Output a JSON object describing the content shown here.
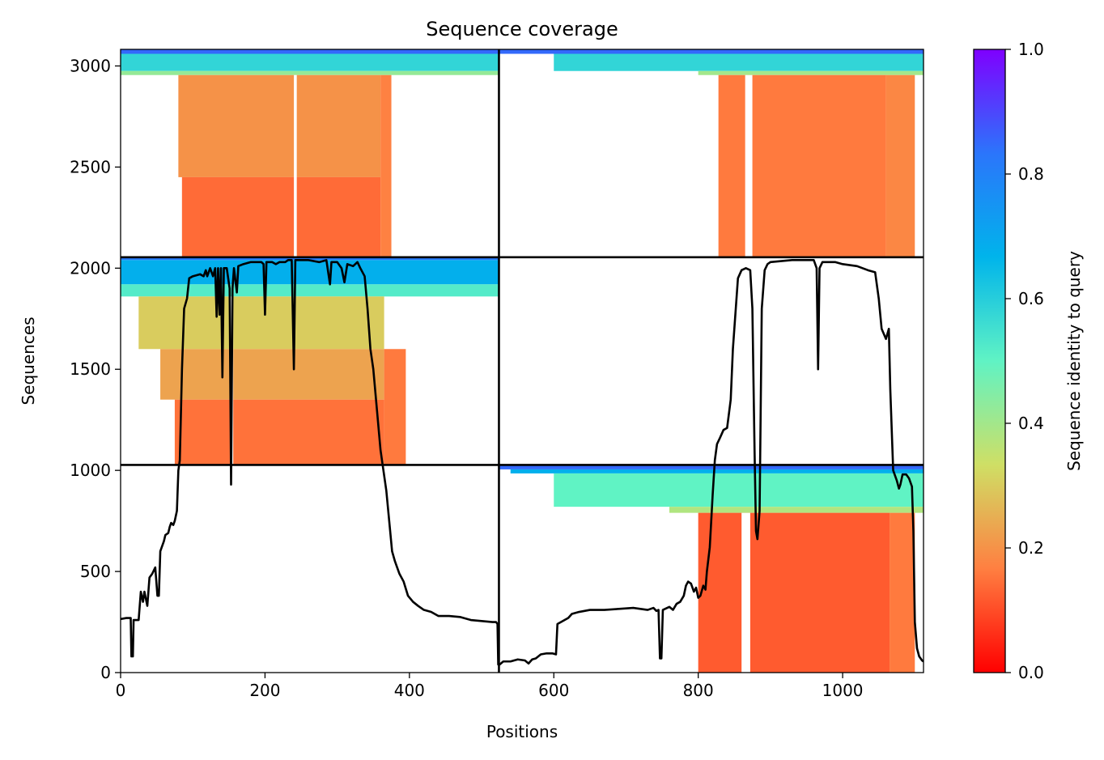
{
  "chart_data": {
    "type": "heatmap",
    "title": "Sequence coverage",
    "xlabel": "Positions",
    "ylabel": "Sequences",
    "xlim": [
      0,
      1112
    ],
    "ylim": [
      0,
      3082
    ],
    "x_ticks": [
      0,
      200,
      400,
      600,
      800,
      1000
    ],
    "y_ticks": [
      0,
      500,
      1000,
      1500,
      2000,
      2500,
      3000
    ],
    "colorbar": {
      "label": "Sequence identity to query",
      "range": [
        0.0,
        1.0
      ],
      "ticks": [
        0.0,
        0.2,
        0.4,
        0.6,
        0.8,
        1.0
      ],
      "colormap": "rainbow_r",
      "stops": [
        "#ff0000",
        "#ff7f41",
        "#cfdf65",
        "#60f3c4",
        "#00b4eb",
        "#2b75fb",
        "#7f00ff"
      ]
    },
    "separators": {
      "vertical_x": [
        524
      ],
      "horizontal_y": [
        1027,
        2054
      ]
    },
    "blocks": [
      {
        "name": "region-lower-left",
        "x_range": [
          0,
          524
        ],
        "y_range": [
          0,
          1027
        ],
        "layers": []
      },
      {
        "name": "region-lower-right",
        "x_range": [
          524,
          1112
        ],
        "y_range": [
          0,
          1027
        ],
        "layers": [
          {
            "y": [
              1005,
              1027
            ],
            "x": [
              524,
              1112
            ],
            "identity": 0.85
          },
          {
            "y": [
              985,
              1005
            ],
            "x": [
              540,
              1112
            ],
            "identity": 0.68
          },
          {
            "y": [
              820,
              985
            ],
            "x": [
              600,
              1112
            ],
            "identity": 0.5
          },
          {
            "y": [
              790,
              820
            ],
            "x": [
              760,
              1112
            ],
            "identity": 0.38
          },
          {
            "y": [
              0,
              790
            ],
            "x": [
              800,
              1065
            ],
            "identity": 0.12
          },
          {
            "y": [
              0,
              790
            ],
            "x": [
              1065,
              1100
            ],
            "identity": 0.16
          }
        ]
      },
      {
        "name": "region-middle-left",
        "x_range": [
          0,
          524
        ],
        "y_range": [
          1027,
          2054
        ],
        "layers": [
          {
            "y": [
              2040,
              2054
            ],
            "x": [
              0,
              524
            ],
            "identity": 0.82
          },
          {
            "y": [
              1920,
              2040
            ],
            "x": [
              0,
              524
            ],
            "identity": 0.68
          },
          {
            "y": [
              1860,
              1920
            ],
            "x": [
              0,
              524
            ],
            "identity": 0.52
          },
          {
            "y": [
              1600,
              1860
            ],
            "x": [
              25,
              365
            ],
            "identity": 0.3
          },
          {
            "y": [
              1350,
              1600
            ],
            "x": [
              55,
              365
            ],
            "identity": 0.23
          },
          {
            "y": [
              1027,
              1350
            ],
            "x": [
              75,
              365
            ],
            "identity": 0.15
          },
          {
            "y": [
              1027,
              1600
            ],
            "x": [
              365,
              395
            ],
            "identity": 0.16
          }
        ]
      },
      {
        "name": "region-middle-right",
        "x_range": [
          524,
          1112
        ],
        "y_range": [
          1027,
          2054
        ],
        "layers": []
      },
      {
        "name": "region-upper-left",
        "x_range": [
          0,
          524
        ],
        "y_range": [
          2054,
          3082
        ],
        "layers": [
          {
            "y": [
              3060,
              3082
            ],
            "x": [
              0,
              524
            ],
            "identity": 0.85
          },
          {
            "y": [
              2975,
              3060
            ],
            "x": [
              0,
              524
            ],
            "identity": 0.58
          },
          {
            "y": [
              2955,
              2975
            ],
            "x": [
              0,
              524
            ],
            "identity": 0.42
          },
          {
            "y": [
              2450,
              2955
            ],
            "x": [
              80,
              360
            ],
            "identity": 0.2
          },
          {
            "y": [
              2054,
              2450
            ],
            "x": [
              85,
              360
            ],
            "identity": 0.14
          },
          {
            "y": [
              2054,
              2955
            ],
            "x": [
              360,
              375
            ],
            "identity": 0.17
          }
        ]
      },
      {
        "name": "region-upper-right",
        "x_range": [
          524,
          1112
        ],
        "y_range": [
          2054,
          3082
        ],
        "layers": [
          {
            "y": [
              3060,
              3082
            ],
            "x": [
              524,
              1112
            ],
            "identity": 0.85
          },
          {
            "y": [
              2975,
              3060
            ],
            "x": [
              600,
              1112
            ],
            "identity": 0.58
          },
          {
            "y": [
              2955,
              2975
            ],
            "x": [
              800,
              1112
            ],
            "identity": 0.4
          },
          {
            "y": [
              2054,
              2955
            ],
            "x": [
              828,
              1060
            ],
            "identity": 0.16
          },
          {
            "y": [
              2054,
              2955
            ],
            "x": [
              1060,
              1100
            ],
            "identity": 0.18
          }
        ]
      }
    ],
    "gaps": [
      {
        "x": [
          860,
          872
        ],
        "y": [
          0,
          790
        ]
      },
      {
        "x": [
          865,
          875
        ],
        "y": [
          2054,
          2955
        ]
      },
      {
        "x": [
          152,
          156
        ],
        "y": [
          1027,
          1860
        ]
      },
      {
        "x": [
          240,
          244
        ],
        "y": [
          2054,
          2955
        ]
      }
    ],
    "coverage_line": [
      [
        0,
        265
      ],
      [
        8,
        270
      ],
      [
        14,
        270
      ],
      [
        15,
        80
      ],
      [
        17,
        80
      ],
      [
        18,
        260
      ],
      [
        25,
        260
      ],
      [
        28,
        400
      ],
      [
        31,
        350
      ],
      [
        33,
        400
      ],
      [
        37,
        330
      ],
      [
        40,
        470
      ],
      [
        44,
        490
      ],
      [
        48,
        520
      ],
      [
        51,
        380
      ],
      [
        53,
        380
      ],
      [
        55,
        600
      ],
      [
        58,
        630
      ],
      [
        60,
        650
      ],
      [
        62,
        680
      ],
      [
        66,
        690
      ],
      [
        68,
        720
      ],
      [
        70,
        740
      ],
      [
        73,
        730
      ],
      [
        75,
        750
      ],
      [
        78,
        800
      ],
      [
        80,
        1000
      ],
      [
        82,
        1050
      ],
      [
        85,
        1500
      ],
      [
        88,
        1800
      ],
      [
        92,
        1850
      ],
      [
        95,
        1950
      ],
      [
        100,
        1960
      ],
      [
        110,
        1970
      ],
      [
        115,
        1960
      ],
      [
        118,
        1990
      ],
      [
        120,
        1960
      ],
      [
        124,
        2000
      ],
      [
        128,
        1960
      ],
      [
        131,
        2000
      ],
      [
        133,
        1760
      ],
      [
        135,
        2000
      ],
      [
        137,
        1770
      ],
      [
        139,
        2000
      ],
      [
        141,
        1460
      ],
      [
        143,
        2000
      ],
      [
        147,
        2000
      ],
      [
        151,
        1900
      ],
      [
        153,
        930
      ],
      [
        155,
        1900
      ],
      [
        157,
        2000
      ],
      [
        161,
        1880
      ],
      [
        163,
        2010
      ],
      [
        170,
        2020
      ],
      [
        180,
        2030
      ],
      [
        195,
        2030
      ],
      [
        198,
        2020
      ],
      [
        200,
        1770
      ],
      [
        202,
        2030
      ],
      [
        210,
        2030
      ],
      [
        215,
        2020
      ],
      [
        220,
        2030
      ],
      [
        228,
        2030
      ],
      [
        232,
        2040
      ],
      [
        237,
        2040
      ],
      [
        240,
        1500
      ],
      [
        242,
        2040
      ],
      [
        260,
        2040
      ],
      [
        275,
        2030
      ],
      [
        285,
        2040
      ],
      [
        290,
        1920
      ],
      [
        292,
        2030
      ],
      [
        300,
        2030
      ],
      [
        306,
        2000
      ],
      [
        310,
        1930
      ],
      [
        314,
        2020
      ],
      [
        322,
        2010
      ],
      [
        328,
        2030
      ],
      [
        332,
        2000
      ],
      [
        338,
        1960
      ],
      [
        342,
        1800
      ],
      [
        346,
        1600
      ],
      [
        350,
        1500
      ],
      [
        355,
        1300
      ],
      [
        360,
        1100
      ],
      [
        364,
        1000
      ],
      [
        368,
        900
      ],
      [
        372,
        750
      ],
      [
        376,
        600
      ],
      [
        380,
        550
      ],
      [
        386,
        490
      ],
      [
        392,
        450
      ],
      [
        398,
        380
      ],
      [
        405,
        350
      ],
      [
        412,
        330
      ],
      [
        420,
        310
      ],
      [
        430,
        300
      ],
      [
        440,
        280
      ],
      [
        455,
        280
      ],
      [
        470,
        275
      ],
      [
        485,
        260
      ],
      [
        500,
        255
      ],
      [
        515,
        250
      ],
      [
        520,
        250
      ],
      [
        522,
        240
      ],
      [
        523,
        40
      ],
      [
        525,
        40
      ],
      [
        530,
        55
      ],
      [
        540,
        55
      ],
      [
        550,
        65
      ],
      [
        560,
        60
      ],
      [
        565,
        45
      ],
      [
        570,
        65
      ],
      [
        575,
        70
      ],
      [
        582,
        90
      ],
      [
        590,
        95
      ],
      [
        598,
        95
      ],
      [
        603,
        90
      ],
      [
        605,
        240
      ],
      [
        610,
        250
      ],
      [
        615,
        260
      ],
      [
        620,
        270
      ],
      [
        625,
        290
      ],
      [
        635,
        300
      ],
      [
        650,
        310
      ],
      [
        670,
        310
      ],
      [
        690,
        315
      ],
      [
        710,
        320
      ],
      [
        730,
        310
      ],
      [
        738,
        320
      ],
      [
        742,
        305
      ],
      [
        745,
        310
      ],
      [
        747,
        70
      ],
      [
        749,
        70
      ],
      [
        751,
        310
      ],
      [
        757,
        320
      ],
      [
        760,
        325
      ],
      [
        765,
        310
      ],
      [
        770,
        340
      ],
      [
        775,
        350
      ],
      [
        780,
        380
      ],
      [
        783,
        430
      ],
      [
        786,
        450
      ],
      [
        790,
        440
      ],
      [
        794,
        400
      ],
      [
        797,
        420
      ],
      [
        800,
        370
      ],
      [
        803,
        380
      ],
      [
        807,
        430
      ],
      [
        810,
        410
      ],
      [
        812,
        500
      ],
      [
        816,
        620
      ],
      [
        820,
        880
      ],
      [
        823,
        1050
      ],
      [
        826,
        1130
      ],
      [
        830,
        1160
      ],
      [
        835,
        1200
      ],
      [
        840,
        1210
      ],
      [
        845,
        1350
      ],
      [
        848,
        1600
      ],
      [
        852,
        1800
      ],
      [
        855,
        1950
      ],
      [
        860,
        1990
      ],
      [
        866,
        2000
      ],
      [
        872,
        1990
      ],
      [
        875,
        1800
      ],
      [
        878,
        1100
      ],
      [
        880,
        700
      ],
      [
        882,
        660
      ],
      [
        885,
        800
      ],
      [
        888,
        1800
      ],
      [
        892,
        1990
      ],
      [
        896,
        2020
      ],
      [
        900,
        2030
      ],
      [
        930,
        2040
      ],
      [
        960,
        2040
      ],
      [
        964,
        2000
      ],
      [
        966,
        1500
      ],
      [
        968,
        2000
      ],
      [
        972,
        2030
      ],
      [
        990,
        2030
      ],
      [
        1000,
        2020
      ],
      [
        1020,
        2010
      ],
      [
        1035,
        1990
      ],
      [
        1045,
        1980
      ],
      [
        1050,
        1850
      ],
      [
        1054,
        1700
      ],
      [
        1060,
        1650
      ],
      [
        1064,
        1700
      ],
      [
        1066,
        1400
      ],
      [
        1070,
        1000
      ],
      [
        1075,
        950
      ],
      [
        1078,
        910
      ],
      [
        1080,
        930
      ],
      [
        1083,
        980
      ],
      [
        1088,
        980
      ],
      [
        1092,
        960
      ],
      [
        1096,
        920
      ],
      [
        1098,
        700
      ],
      [
        1100,
        250
      ],
      [
        1103,
        120
      ],
      [
        1106,
        80
      ],
      [
        1110,
        60
      ],
      [
        1112,
        55
      ]
    ]
  }
}
